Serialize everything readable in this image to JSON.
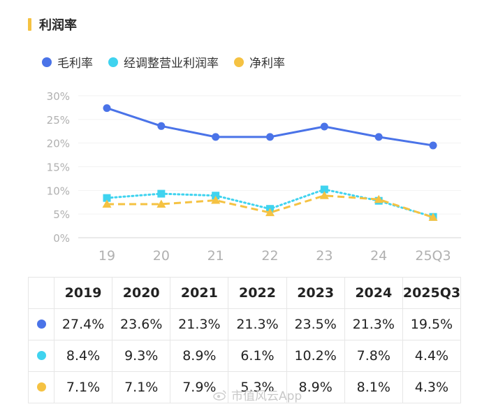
{
  "title": "利润率",
  "colors": {
    "gross": "#4a73e8",
    "adjusted": "#3fd3ef",
    "net": "#f5c242",
    "accent_bar": "#f5c242"
  },
  "chart_data": {
    "type": "line",
    "categories": [
      "19",
      "20",
      "21",
      "22",
      "23",
      "24",
      "25Q3"
    ],
    "ylim": [
      0,
      30
    ],
    "yticks": [
      "0%",
      "5%",
      "10%",
      "15%",
      "20%",
      "25%",
      "30%"
    ],
    "series": [
      {
        "name": "毛利率",
        "color": "#4a73e8",
        "style": "solid",
        "marker": "circle",
        "values": [
          27.4,
          23.6,
          21.3,
          21.3,
          23.5,
          21.3,
          19.5
        ]
      },
      {
        "name": "经调整营业利润率",
        "color": "#3fd3ef",
        "style": "dotted",
        "marker": "square",
        "values": [
          8.4,
          9.3,
          8.9,
          6.1,
          10.2,
          7.8,
          4.4
        ]
      },
      {
        "name": "净利率",
        "color": "#f5c242",
        "style": "dashed",
        "marker": "triangle",
        "values": [
          7.1,
          7.1,
          7.9,
          5.3,
          8.9,
          8.1,
          4.3
        ]
      }
    ]
  },
  "table": {
    "headers": [
      "2019",
      "2020",
      "2021",
      "2022",
      "2023",
      "2024",
      "2025Q3"
    ],
    "rows": [
      {
        "color": "#4a73e8",
        "cells": [
          "27.4%",
          "23.6%",
          "21.3%",
          "21.3%",
          "23.5%",
          "21.3%",
          "19.5%"
        ]
      },
      {
        "color": "#3fd3ef",
        "cells": [
          "8.4%",
          "9.3%",
          "8.9%",
          "6.1%",
          "10.2%",
          "7.8%",
          "4.4%"
        ]
      },
      {
        "color": "#f5c242",
        "cells": [
          "7.1%",
          "7.1%",
          "7.9%",
          "5.3%",
          "8.9%",
          "8.1%",
          "4.3%"
        ]
      }
    ]
  },
  "watermark": "市值风云App"
}
